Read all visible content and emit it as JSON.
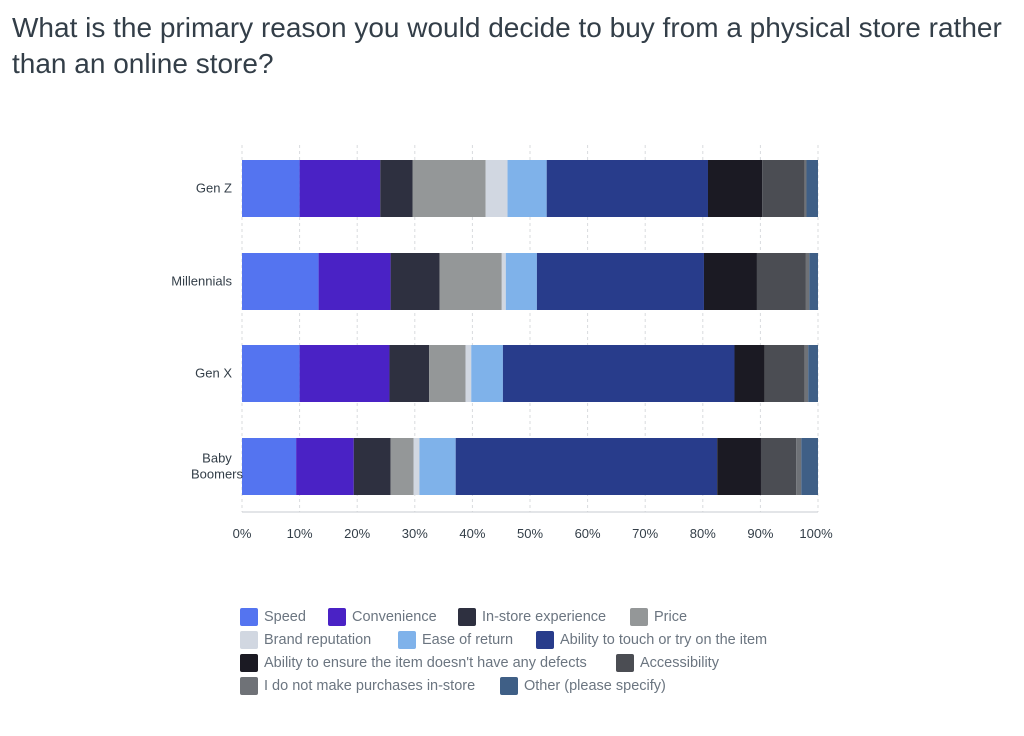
{
  "chart_data": {
    "type": "bar",
    "orientation": "horizontal",
    "stacked": true,
    "title": "What is the primary reason you would decide to buy from a physical store rather than an online store?",
    "categories": [
      "Gen Z",
      "Millennials",
      "Gen X",
      "Baby Boomers"
    ],
    "category_lines": [
      [
        "Gen Z"
      ],
      [
        "Millennials"
      ],
      [
        "Gen X"
      ],
      [
        "Baby",
        "Boomers"
      ]
    ],
    "xlim": [
      0,
      100
    ],
    "x_ticks": [
      "0%",
      "10%",
      "20%",
      "30%",
      "40%",
      "50%",
      "60%",
      "70%",
      "80%",
      "90%",
      "100%"
    ],
    "grid": true,
    "legend_position": "bottom",
    "series": [
      {
        "name": "Speed",
        "color": "#5474f0",
        "values": [
          10,
          13.3,
          10,
          9.4
        ]
      },
      {
        "name": "Convenience",
        "color": "#4a22c5",
        "values": [
          14,
          12.5,
          15.6,
          10
        ]
      },
      {
        "name": "In-store experience",
        "color": "#2e3040",
        "values": [
          5.6,
          8.5,
          6.9,
          6.4
        ]
      },
      {
        "name": "Price",
        "color": "#949798",
        "values": [
          12.7,
          10.8,
          6.3,
          4
        ]
      },
      {
        "name": "Brand reputation",
        "color": "#d1d7e1",
        "values": [
          3.8,
          0.7,
          1,
          1
        ]
      },
      {
        "name": "Ease of return",
        "color": "#7fb2ea",
        "values": [
          6.8,
          5.4,
          5.5,
          6.3
        ]
      },
      {
        "name": "Ability to touch or try on the item",
        "color": "#283c8b",
        "values": [
          28,
          29,
          40.2,
          45.4
        ]
      },
      {
        "name": "Ability to ensure the item doesn't have any defects",
        "color": "#1b1a23",
        "values": [
          9.4,
          9.2,
          5.2,
          7.6
        ]
      },
      {
        "name": "Accessibility",
        "color": "#4b4d53",
        "values": [
          7.4,
          8.5,
          7,
          6.1
        ]
      },
      {
        "name": "I do not make purchases in-store",
        "color": "#6f7277",
        "values": [
          0.3,
          0.6,
          0.6,
          0.9
        ]
      },
      {
        "name": "Other (please specify)",
        "color": "#3f5f86",
        "values": [
          2,
          1.5,
          1.7,
          2.9
        ]
      }
    ]
  }
}
